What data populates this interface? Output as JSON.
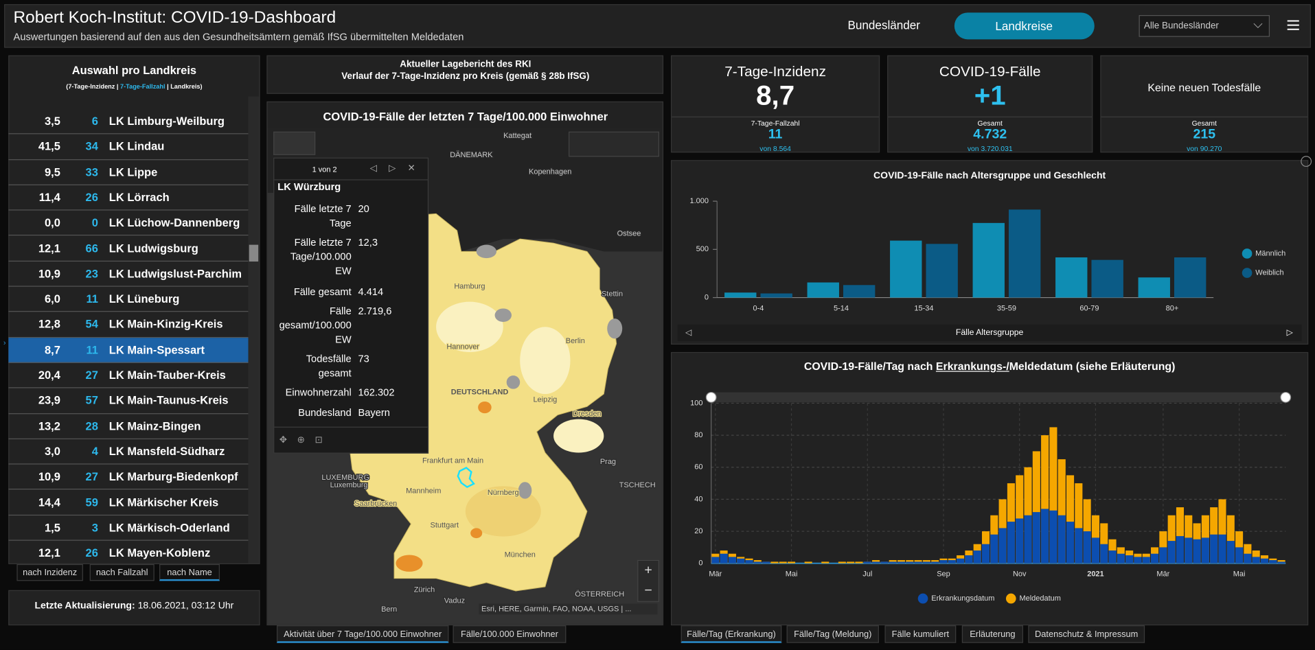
{
  "header": {
    "title": "Robert Koch-Institut: COVID-19-Dashboard",
    "subtitle": "Auswertungen basierend auf den aus den Gesundheitsämtern gemäß IfSG übermittelten Meldedaten",
    "tabs": [
      "Bundesländer",
      "Landkreise"
    ],
    "dropdown": "Alle Bundesländer"
  },
  "district_list": {
    "title": "Auswahl pro Landkreis",
    "legend": [
      "(7-Tage-Inzidenz |",
      "7-Tage-Fallzahl",
      "| Landkreis)"
    ],
    "rows": [
      [
        "3,5",
        "6",
        "LK Limburg-Weilburg"
      ],
      [
        "41,5",
        "34",
        "LK Lindau"
      ],
      [
        "9,5",
        "33",
        "LK Lippe"
      ],
      [
        "11,4",
        "26",
        "LK Lörrach"
      ],
      [
        "0,0",
        "0",
        "LK Lüchow-Dannenberg"
      ],
      [
        "12,1",
        "66",
        "LK Ludwigsburg"
      ],
      [
        "10,9",
        "23",
        "LK Ludwigslust-Parchim"
      ],
      [
        "6,0",
        "11",
        "LK Lüneburg"
      ],
      [
        "12,8",
        "54",
        "LK Main-Kinzig-Kreis"
      ],
      [
        "8,7",
        "11",
        "LK Main-Spessart"
      ],
      [
        "20,4",
        "27",
        "LK Main-Tauber-Kreis"
      ],
      [
        "23,9",
        "57",
        "LK Main-Taunus-Kreis"
      ],
      [
        "13,2",
        "28",
        "LK Mainz-Bingen"
      ],
      [
        "3,0",
        "4",
        "LK Mansfeld-Südharz"
      ],
      [
        "10,9",
        "27",
        "LK Marburg-Biedenkopf"
      ],
      [
        "14,4",
        "59",
        "LK Märkischer Kreis"
      ],
      [
        "1,5",
        "3",
        "LK Märkisch-Oderland"
      ],
      [
        "12,1",
        "26",
        "LK Mayen-Koblenz"
      ]
    ],
    "sort_buttons": [
      "nach Inzidenz",
      "nach Fallzahl",
      "nach Name"
    ]
  },
  "update": {
    "label": "Letzte Aktualisierung:",
    "value": "18.06.2021, 03:12 Uhr"
  },
  "report": {
    "lines": [
      "Aktueller Lagebericht des RKI",
      "Verlauf der 7-Tage-Inzidenz pro Kreis (gemäß § 28b IfSG)"
    ]
  },
  "map": {
    "title": "COVID-19-Fälle der letzten 7 Tage/100.000 Einwohner",
    "labels": [
      "Kattegat",
      "DÄNEMARK",
      "Kopenhagen",
      "Ostsee",
      "Hamburg",
      "Stettin",
      "Hannover",
      "Berlin",
      "DEUTSCHLAND",
      "Leipzig",
      "Dresden",
      "Frankfurt am Main",
      "Prag",
      "LUXEMBURG",
      "Luxemburg",
      "Saarbrücken",
      "Mannheim",
      "Nürnberg",
      "Stuttgart",
      "TSCHECH",
      "München",
      "ÖSTERREICH",
      "Zürich",
      "Vaduz",
      "Bern"
    ],
    "attribution": "Esri, HERE, Garmin, FAO, NOAA, USGS | ...",
    "tabs": [
      "Aktivität über 7 Tage/100.000 Einwohner",
      "Fälle/100.000 Einwohner"
    ],
    "popup": {
      "pager": "1 von 2",
      "title": "LK Würzburg",
      "fields": [
        [
          "Fälle letzte 7 Tage",
          "20"
        ],
        [
          "Fälle letzte 7 Tage/100.000 EW",
          "12,3"
        ],
        [
          "Fälle gesamt",
          "4.414"
        ],
        [
          "Fälle gesamt/100.000 EW",
          "2.719,6"
        ],
        [
          "Todesfälle gesamt",
          "73"
        ],
        [
          "Einwohnerzahl",
          "162.302"
        ],
        [
          "Bundesland",
          "Bayern"
        ]
      ]
    }
  },
  "kpis": [
    {
      "title": "7-Tage-Inzidenz",
      "value": "8,7",
      "sub_label": "7-Tage-Fallzahl",
      "sub_value": "11",
      "sub_note": "von 8.564"
    },
    {
      "title": "COVID-19-Fälle",
      "value": "+1",
      "sub_label": "Gesamt",
      "sub_value": "4.732",
      "sub_note": "von 3.720.031"
    },
    {
      "title": "Keine neuen Todesfälle",
      "sub_label": "Gesamt",
      "sub_value": "215",
      "sub_note": "von 90.270"
    }
  ],
  "chart_data": [
    {
      "type": "bar",
      "barmode": "group",
      "title": "COVID-19-Fälle nach Altersgruppe und Geschlecht",
      "xlabel": "Fälle Altersgruppe",
      "categories": [
        "0-4",
        "5-14",
        "15-34",
        "35-59",
        "60-79",
        "80+"
      ],
      "series": [
        {
          "name": "Männlich",
          "color": "#0f8db3",
          "values": [
            52,
            157,
            591,
            774,
            417,
            209
          ]
        },
        {
          "name": "Weiblich",
          "color": "#0b5b86",
          "values": [
            43,
            130,
            557,
            913,
            391,
            417
          ]
        }
      ],
      "ylim": [
        0,
        1000
      ],
      "yticks": [
        0,
        500,
        {
          "value": 1000,
          "label": "1.000"
        }
      ],
      "grid": false,
      "legend": "right"
    },
    {
      "type": "bar",
      "barmode": "overlay",
      "title": [
        "COVID-19-Fälle/Tag nach",
        "Erkrankungs-/",
        "Meldedatum (siehe Erläuterung)"
      ],
      "categories": [
        "Mär",
        null,
        null,
        null,
        null,
        null,
        null,
        null,
        null,
        "Mai",
        null,
        null,
        null,
        null,
        null,
        null,
        null,
        null,
        "Jul",
        null,
        null,
        null,
        null,
        null,
        null,
        null,
        null,
        "Sep",
        null,
        null,
        null,
        null,
        null,
        null,
        null,
        null,
        "Nov",
        null,
        null,
        null,
        null,
        null,
        null,
        null,
        null,
        "2021",
        null,
        null,
        null,
        null,
        null,
        null,
        null,
        "Mär",
        null,
        null,
        null,
        null,
        null,
        null,
        null,
        null,
        "Mai",
        null,
        null,
        null,
        null,
        null
      ],
      "series": [
        {
          "name": "Erkrankungsdatum",
          "color": "#0c4eb0",
          "values": [
            4,
            6,
            4,
            3,
            2,
            1,
            1,
            0,
            0,
            0,
            0,
            0,
            0,
            0,
            0,
            0,
            0,
            0,
            1,
            1,
            1,
            1,
            1,
            1,
            1,
            1,
            1,
            2,
            2,
            3,
            5,
            8,
            12,
            18,
            22,
            26,
            28,
            30,
            32,
            34,
            33,
            30,
            26,
            22,
            20,
            16,
            12,
            8,
            6,
            5,
            4,
            4,
            6,
            10,
            14,
            17,
            16,
            15,
            16,
            18,
            18,
            14,
            10,
            6,
            4,
            3,
            2,
            1
          ]
        },
        {
          "name": "Meldedatum",
          "color": "#f5a700",
          "values": [
            6,
            8,
            6,
            4,
            3,
            2,
            1,
            1,
            1,
            1,
            0,
            1,
            0,
            1,
            0,
            1,
            1,
            1,
            1,
            2,
            1,
            2,
            2,
            2,
            2,
            2,
            2,
            3,
            3,
            5,
            8,
            12,
            20,
            30,
            40,
            50,
            55,
            60,
            70,
            80,
            85,
            65,
            55,
            50,
            40,
            30,
            25,
            15,
            10,
            8,
            6,
            6,
            10,
            20,
            30,
            35,
            30,
            25,
            30,
            35,
            40,
            30,
            20,
            12,
            8,
            5,
            3,
            2
          ]
        }
      ],
      "ylim": [
        0,
        100
      ],
      "yticks": [
        0,
        20,
        40,
        60,
        80,
        100
      ],
      "grid": true,
      "legend": "bottom"
    }
  ],
  "bottom_tabs": [
    "Fälle/Tag (Erkrankung)",
    "Fälle/Tag (Meldung)",
    "Fälle kumuliert",
    "Erläuterung",
    "Datenschutz & Impressum"
  ]
}
